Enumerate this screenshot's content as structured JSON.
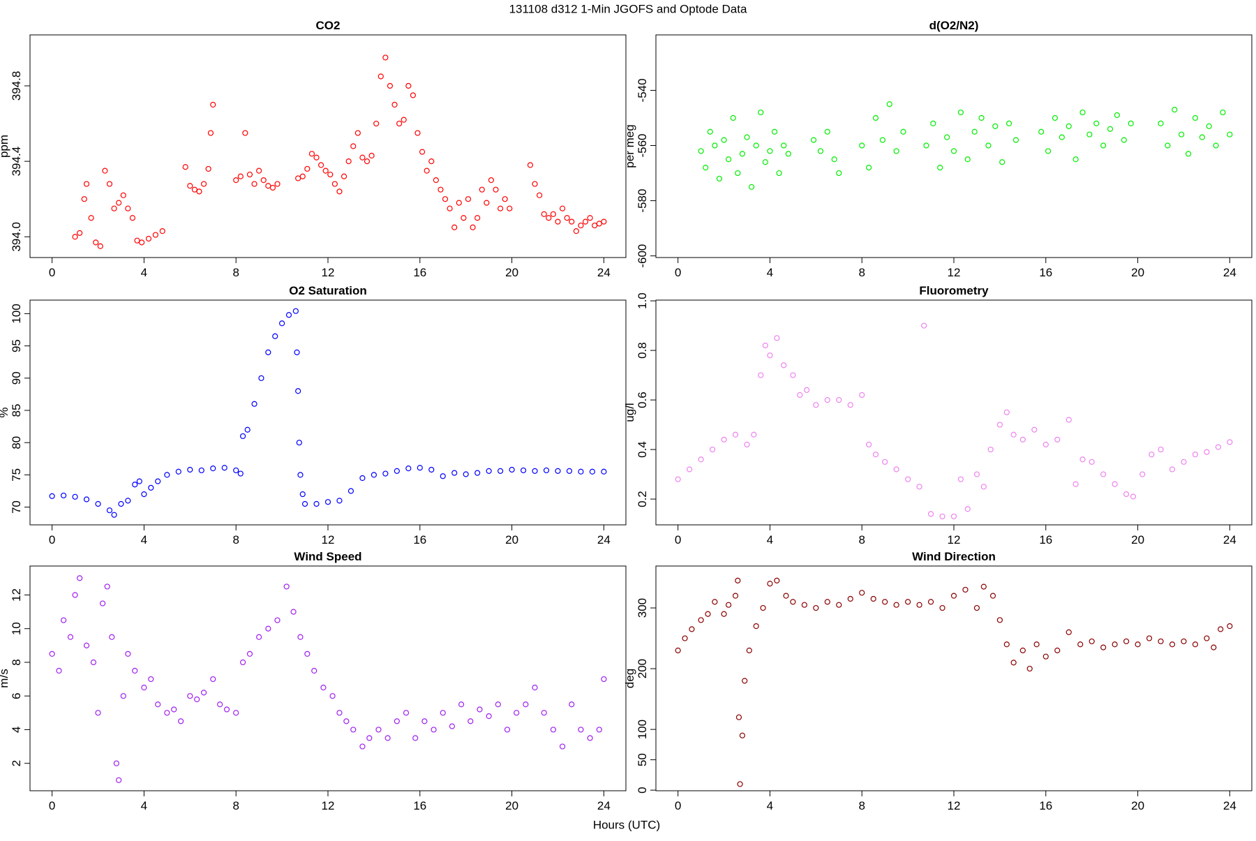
{
  "title": "131108   d312   1-Min  JGOFS and Optode Data",
  "xlabel": "Hours (UTC)",
  "chart_data": [
    {
      "type": "scatter",
      "title": "CO2",
      "ylabel": "ppm",
      "color": "#ff0000",
      "xlim": [
        -0.96,
        24.96
      ],
      "xticks": [
        0,
        4,
        8,
        12,
        16,
        20,
        24
      ],
      "ylim": [
        393.89,
        395.07
      ],
      "yticks": [
        {
          "value": 394,
          "label": "394.0"
        },
        394.4,
        394.8
      ],
      "x": [
        1.0,
        1.2,
        1.4,
        1.5,
        1.7,
        1.9,
        2.1,
        2.3,
        2.5,
        2.7,
        2.9,
        3.1,
        3.3,
        3.5,
        3.7,
        3.9,
        4.2,
        4.5,
        4.8,
        5.8,
        6.0,
        6.2,
        6.4,
        6.6,
        6.8,
        6.9,
        7.0,
        8.0,
        8.2,
        8.4,
        8.6,
        8.8,
        9.0,
        9.2,
        9.4,
        9.6,
        9.8,
        10.7,
        10.9,
        11.1,
        11.3,
        11.5,
        11.7,
        11.9,
        12.1,
        12.3,
        12.5,
        12.7,
        12.9,
        13.1,
        13.3,
        13.5,
        13.7,
        13.9,
        14.1,
        14.3,
        14.5,
        14.7,
        14.9,
        15.1,
        15.3,
        15.5,
        15.7,
        15.9,
        16.1,
        16.3,
        16.5,
        16.7,
        16.9,
        17.1,
        17.3,
        17.5,
        17.7,
        17.9,
        18.1,
        18.3,
        18.5,
        18.7,
        18.9,
        19.1,
        19.3,
        19.5,
        19.7,
        19.9,
        20.8,
        21.0,
        21.2,
        21.4,
        21.6,
        21.8,
        22.0,
        22.2,
        22.4,
        22.6,
        22.8,
        23.0,
        23.2,
        23.4,
        23.6,
        23.8,
        24.0
      ],
      "y": [
        394.0,
        394.02,
        394.2,
        394.28,
        394.1,
        393.97,
        393.95,
        394.35,
        394.28,
        394.15,
        394.18,
        394.22,
        394.15,
        394.1,
        393.98,
        393.97,
        393.99,
        394.01,
        394.03,
        394.37,
        394.27,
        394.25,
        394.24,
        394.28,
        394.36,
        394.55,
        394.7,
        394.3,
        394.32,
        394.55,
        394.33,
        394.28,
        394.35,
        394.3,
        394.27,
        394.26,
        394.28,
        394.31,
        394.32,
        394.36,
        394.44,
        394.42,
        394.38,
        394.35,
        394.33,
        394.28,
        394.24,
        394.32,
        394.4,
        394.48,
        394.55,
        394.42,
        394.4,
        394.43,
        394.6,
        394.85,
        394.95,
        394.8,
        394.7,
        394.6,
        394.62,
        394.8,
        394.75,
        394.55,
        394.45,
        394.35,
        394.4,
        394.3,
        394.25,
        394.2,
        394.15,
        394.05,
        394.18,
        394.1,
        394.2,
        394.05,
        394.1,
        394.25,
        394.18,
        394.3,
        394.25,
        394.15,
        394.2,
        394.15,
        394.38,
        394.28,
        394.22,
        394.12,
        394.1,
        394.12,
        394.08,
        394.15,
        394.1,
        394.08,
        394.03,
        394.06,
        394.08,
        394.1,
        394.06,
        394.07,
        394.08
      ]
    },
    {
      "type": "scatter",
      "title": "d(O2/N2)",
      "ylabel": "per meg",
      "color": "#00ee00",
      "xlim": [
        -0.96,
        24.96
      ],
      "xticks": [
        0,
        4,
        8,
        12,
        16,
        20,
        24
      ],
      "ylim": [
        -600.6,
        -519.9
      ],
      "yticks": [
        -600,
        -580,
        -560,
        -540
      ],
      "x": [
        1.0,
        1.2,
        1.4,
        1.6,
        1.8,
        2.0,
        2.2,
        2.4,
        2.6,
        2.8,
        3.0,
        3.2,
        3.4,
        3.6,
        3.8,
        4.0,
        4.2,
        4.4,
        4.6,
        4.8,
        5.9,
        6.2,
        6.5,
        6.8,
        7.0,
        8.0,
        8.3,
        8.6,
        8.9,
        9.2,
        9.5,
        9.8,
        10.8,
        11.1,
        11.4,
        11.7,
        12.0,
        12.3,
        12.6,
        12.9,
        13.2,
        13.5,
        13.8,
        14.1,
        14.4,
        14.7,
        15.8,
        16.1,
        16.4,
        16.7,
        17.0,
        17.3,
        17.6,
        17.9,
        18.2,
        18.5,
        18.8,
        19.1,
        19.4,
        19.7,
        21.0,
        21.3,
        21.6,
        21.9,
        22.2,
        22.5,
        22.8,
        23.1,
        23.4,
        23.7,
        24.0
      ],
      "y": [
        -562,
        -568,
        -555,
        -560,
        -572,
        -558,
        -565,
        -550,
        -570,
        -563,
        -557,
        -575,
        -560,
        -548,
        -566,
        -562,
        -555,
        -570,
        -560,
        -563,
        -558,
        -562,
        -555,
        -565,
        -570,
        -560,
        -568,
        -550,
        -558,
        -545,
        -562,
        -555,
        -560,
        -552,
        -568,
        -557,
        -562,
        -548,
        -565,
        -555,
        -550,
        -560,
        -553,
        -566,
        -552,
        -558,
        -555,
        -562,
        -550,
        -557,
        -553,
        -565,
        -548,
        -556,
        -552,
        -560,
        -554,
        -549,
        -558,
        -552,
        -552,
        -560,
        -547,
        -556,
        -563,
        -550,
        -557,
        -553,
        -560,
        -548,
        -556
      ]
    },
    {
      "type": "scatter",
      "title": "O2 Saturation",
      "ylabel": "%",
      "color": "#0000ff",
      "xlim": [
        -0.96,
        24.96
      ],
      "xticks": [
        0,
        4,
        8,
        12,
        16,
        20,
        24
      ],
      "ylim": [
        67.25,
        102.1
      ],
      "yticks": [
        70,
        75,
        80,
        85,
        90,
        95,
        100
      ],
      "x": [
        0,
        0.5,
        1,
        1.5,
        2,
        2.5,
        2.7,
        3,
        3.3,
        3.6,
        3.8,
        4,
        4.3,
        4.6,
        5,
        5.5,
        6,
        6.5,
        7,
        7.5,
        8,
        8.2,
        8.3,
        8.5,
        8.8,
        9.1,
        9.4,
        9.7,
        10,
        10.3,
        10.6,
        10.65,
        10.7,
        10.75,
        10.8,
        10.9,
        11,
        11.5,
        12,
        12.5,
        13,
        13.5,
        14,
        14.5,
        15,
        15.5,
        16,
        16.5,
        17,
        17.5,
        18,
        18.5,
        19,
        19.5,
        20,
        20.5,
        21,
        21.5,
        22,
        22.5,
        23,
        23.5,
        24
      ],
      "y": [
        71.7,
        71.8,
        71.6,
        71.2,
        70.5,
        69.5,
        68.8,
        70.5,
        71,
        73.5,
        74,
        72,
        73,
        74,
        75,
        75.5,
        75.8,
        75.7,
        76,
        76.1,
        75.7,
        75.2,
        81,
        82,
        86,
        90,
        94,
        96.5,
        98.5,
        99.8,
        100.4,
        94,
        88,
        80,
        75,
        72,
        70.5,
        70.5,
        70.8,
        71,
        72.5,
        74.5,
        75,
        75.2,
        75.6,
        76,
        76.1,
        75.8,
        74.8,
        75.3,
        75.1,
        75.3,
        75.6,
        75.6,
        75.8,
        75.7,
        75.6,
        75.7,
        75.6,
        75.6,
        75.5,
        75.5,
        75.5
      ]
    },
    {
      "type": "scatter",
      "title": "Fluorometry",
      "ylabel": "ug/l",
      "color": "#ee82ee",
      "xlim": [
        -0.96,
        24.96
      ],
      "xticks": [
        0,
        4,
        8,
        12,
        16,
        20,
        24
      ],
      "ylim": [
        0.096,
        1.003
      ],
      "yticks": [
        0.2,
        0.4,
        0.6,
        0.8,
        {
          "value": 1,
          "label": "1.0"
        }
      ],
      "x": [
        0,
        0.5,
        1,
        1.5,
        2,
        2.5,
        3,
        3.3,
        3.6,
        3.8,
        4.0,
        4.3,
        4.6,
        5,
        5.3,
        5.6,
        6,
        6.5,
        7,
        7.5,
        8,
        8.3,
        8.6,
        9,
        9.5,
        10,
        10.5,
        10.7,
        11,
        11.5,
        12,
        12.3,
        12.6,
        13,
        13.3,
        13.6,
        14,
        14.3,
        14.6,
        15,
        15.5,
        16,
        16.5,
        17,
        17.3,
        17.6,
        18,
        18.5,
        19,
        19.5,
        19.8,
        20.2,
        20.6,
        21,
        21.5,
        22,
        22.5,
        23,
        23.5,
        24
      ],
      "y": [
        0.28,
        0.32,
        0.36,
        0.4,
        0.44,
        0.46,
        0.42,
        0.46,
        0.7,
        0.82,
        0.78,
        0.85,
        0.74,
        0.7,
        0.62,
        0.64,
        0.58,
        0.6,
        0.6,
        0.58,
        0.62,
        0.42,
        0.38,
        0.35,
        0.32,
        0.28,
        0.25,
        0.9,
        0.14,
        0.13,
        0.13,
        0.28,
        0.16,
        0.3,
        0.25,
        0.4,
        0.5,
        0.55,
        0.46,
        0.44,
        0.48,
        0.42,
        0.44,
        0.52,
        0.26,
        0.36,
        0.35,
        0.3,
        0.26,
        0.22,
        0.21,
        0.3,
        0.38,
        0.4,
        0.32,
        0.35,
        0.38,
        0.39,
        0.41,
        0.43
      ]
    },
    {
      "type": "scatter",
      "title": "Wind Speed",
      "ylabel": "m/s",
      "color": "#a020f0",
      "xlim": [
        -0.96,
        24.96
      ],
      "xticks": [
        0,
        4,
        8,
        12,
        16,
        20,
        24
      ],
      "ylim": [
        0.37,
        13.72
      ],
      "yticks": [
        2,
        4,
        6,
        8,
        10,
        12
      ],
      "x": [
        0,
        0.3,
        0.5,
        0.8,
        1,
        1.2,
        1.5,
        1.8,
        2,
        2.2,
        2.4,
        2.6,
        2.8,
        2.9,
        3.1,
        3.3,
        3.6,
        4,
        4.3,
        4.6,
        5,
        5.3,
        5.6,
        6,
        6.3,
        6.6,
        7,
        7.3,
        7.6,
        8,
        8.3,
        8.6,
        9,
        9.4,
        9.8,
        10.2,
        10.5,
        10.8,
        11.1,
        11.4,
        11.8,
        12.2,
        12.5,
        12.8,
        13.1,
        13.5,
        13.8,
        14.2,
        14.6,
        15,
        15.4,
        15.8,
        16.2,
        16.6,
        17,
        17.4,
        17.8,
        18.2,
        18.6,
        19,
        19.4,
        19.8,
        20.2,
        20.6,
        21,
        21.4,
        21.8,
        22.2,
        22.6,
        23,
        23.4,
        23.8,
        24
      ],
      "y": [
        8.5,
        7.5,
        10.5,
        9.5,
        12,
        13,
        9,
        8,
        5,
        11.5,
        12.5,
        9.5,
        2,
        1,
        6,
        8.5,
        7.5,
        6.5,
        7,
        5.5,
        5,
        5.2,
        4.5,
        6,
        5.8,
        6.2,
        7,
        5.5,
        5.2,
        5,
        8,
        8.5,
        9.5,
        10,
        10.5,
        12.5,
        11,
        9.5,
        8.5,
        7.5,
        6.5,
        6,
        5,
        4.5,
        4,
        3,
        3.5,
        4,
        3.5,
        4.5,
        5,
        3.5,
        4.5,
        4,
        5,
        4.2,
        5.5,
        4.5,
        5.2,
        4.8,
        5.5,
        4,
        5,
        5.5,
        6.5,
        5,
        4,
        3,
        5.5,
        4,
        3.5,
        4,
        7
      ]
    },
    {
      "type": "scatter",
      "title": "Wind Direction",
      "ylabel": "deg",
      "color": "#8b0000",
      "xlim": [
        -0.96,
        24.96
      ],
      "xticks": [
        0,
        4,
        8,
        12,
        16,
        20,
        24
      ],
      "ylim": [
        -1,
        369
      ],
      "yticks": [
        0,
        50,
        100,
        200,
        300
      ],
      "x": [
        0,
        0.3,
        0.6,
        1,
        1.3,
        1.6,
        2,
        2.2,
        2.5,
        2.6,
        2.65,
        2.7,
        2.8,
        2.9,
        3.1,
        3.4,
        3.7,
        4,
        4.3,
        4.7,
        5,
        5.5,
        6,
        6.5,
        7,
        7.5,
        8,
        8.5,
        9,
        9.5,
        10,
        10.5,
        11,
        11.5,
        12,
        12.5,
        13,
        13.3,
        13.7,
        14,
        14.3,
        14.6,
        15,
        15.3,
        15.6,
        16,
        16.5,
        17,
        17.5,
        18,
        18.5,
        19,
        19.5,
        20,
        20.5,
        21,
        21.5,
        22,
        22.5,
        23,
        23.3,
        23.6,
        24
      ],
      "y": [
        230,
        250,
        265,
        280,
        290,
        310,
        290,
        305,
        320,
        345,
        120,
        10,
        90,
        180,
        230,
        270,
        300,
        340,
        345,
        320,
        310,
        305,
        300,
        310,
        305,
        315,
        325,
        315,
        310,
        305,
        310,
        305,
        310,
        300,
        320,
        330,
        300,
        335,
        320,
        280,
        240,
        210,
        230,
        200,
        240,
        220,
        230,
        260,
        240,
        245,
        235,
        240,
        245,
        240,
        250,
        245,
        240,
        245,
        240,
        250,
        235,
        265,
        270
      ]
    }
  ]
}
